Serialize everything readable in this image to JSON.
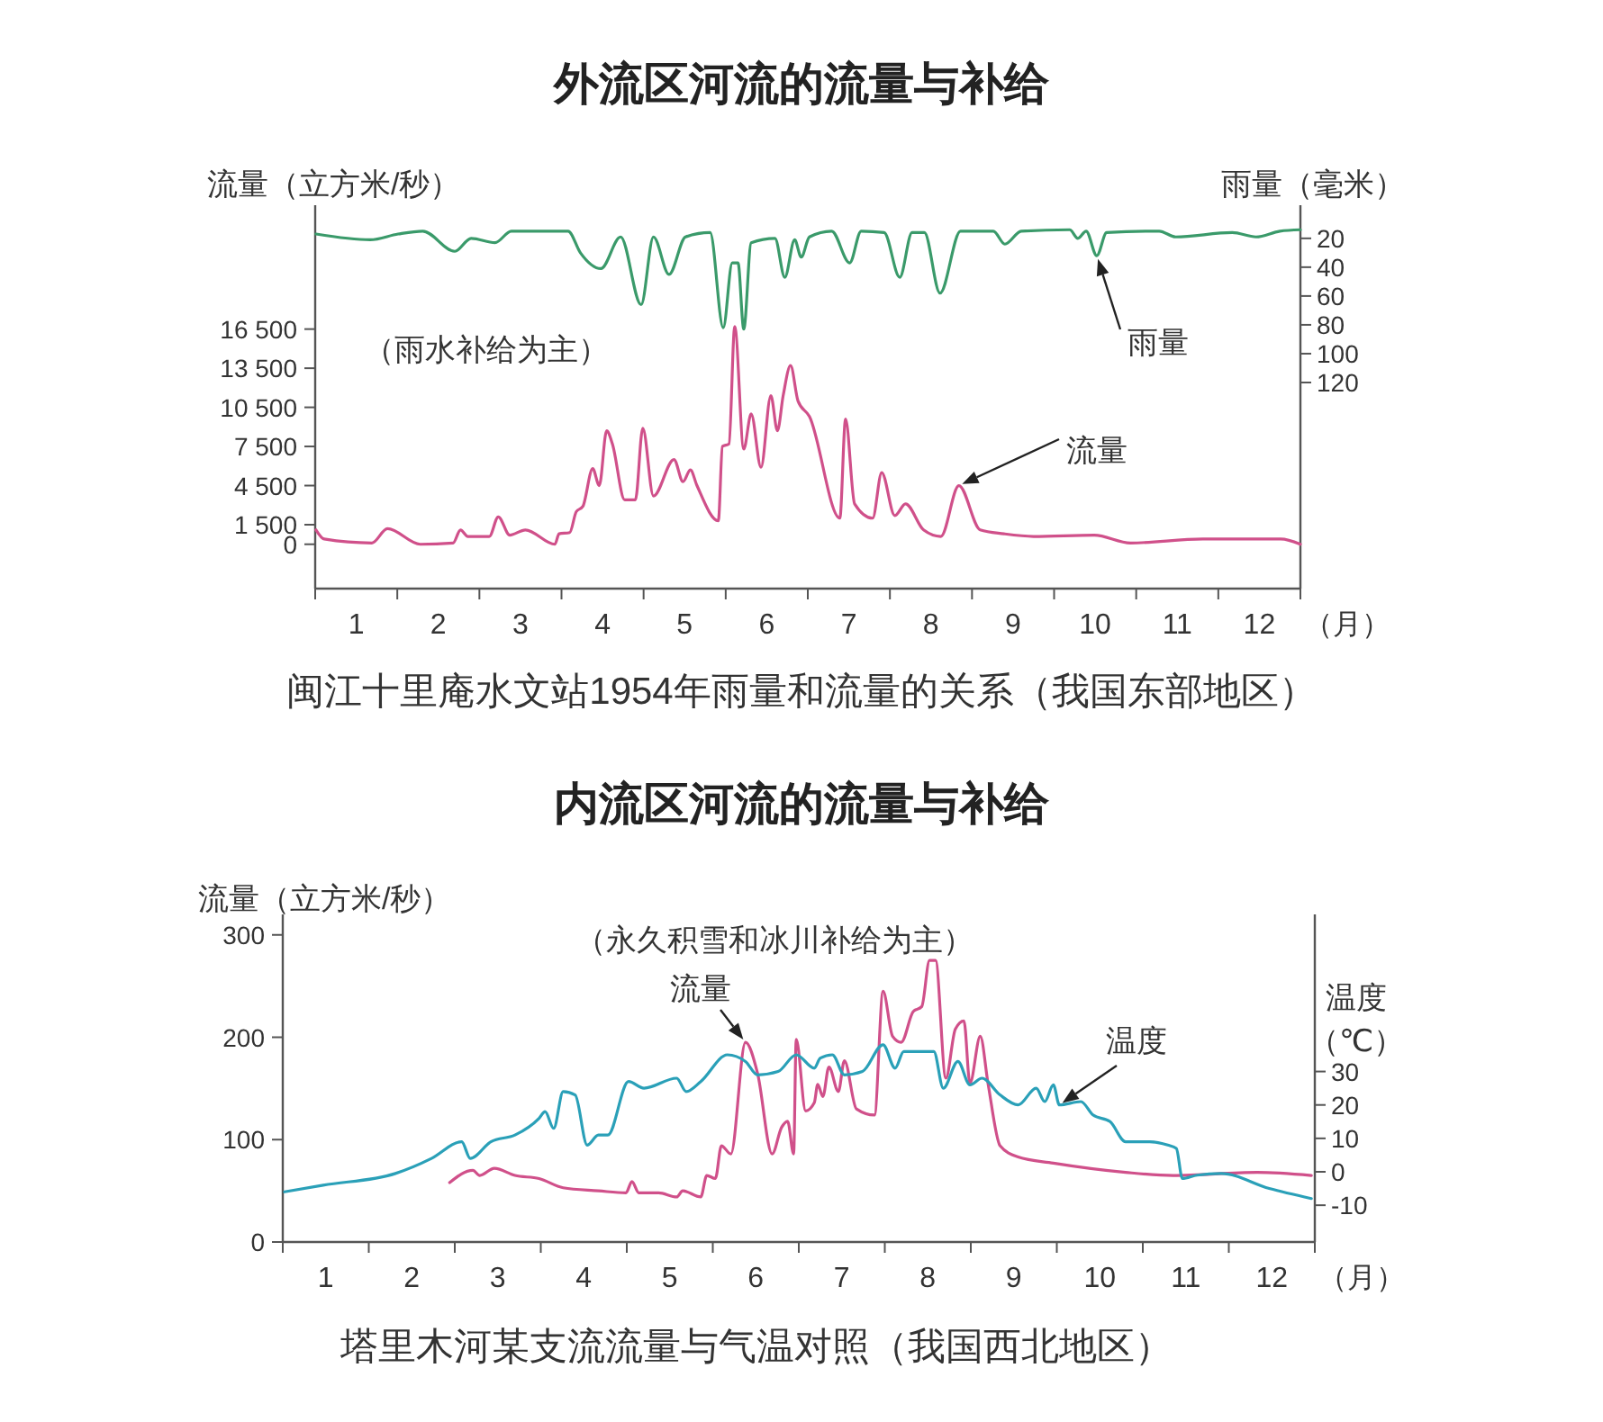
{
  "chart_data": [
    {
      "type": "line",
      "title": "外流区河流的流量与补给",
      "ylabel": "流量（立方米/秒）",
      "y2label": "雨量（毫米）",
      "xlabel": "（月）",
      "annotations": [
        "（雨水补给为主）",
        "闽江十里庵水文站1954年雨量和流量的关系（我国东部地区）"
      ],
      "xlim": [
        0,
        12
      ],
      "xticks": [
        {
          "value": 0,
          "label": null
        },
        {
          "value": 1,
          "label": null
        },
        {
          "value": 2,
          "label": null
        },
        {
          "value": 3,
          "label": null
        },
        {
          "value": 4,
          "label": null
        },
        {
          "value": 5,
          "label": null
        },
        {
          "value": 6,
          "label": null
        },
        {
          "value": 7,
          "label": null
        },
        {
          "value": 8,
          "label": null
        },
        {
          "value": 9,
          "label": null
        },
        {
          "value": 10,
          "label": null
        },
        {
          "value": 11,
          "label": null
        },
        {
          "value": 12,
          "label": null
        },
        {
          "value": 0.5,
          "label": "1"
        },
        {
          "value": 1.5,
          "label": "2"
        },
        {
          "value": 2.5,
          "label": "3"
        },
        {
          "value": 3.5,
          "label": "4"
        },
        {
          "value": 4.5,
          "label": "5"
        },
        {
          "value": 5.5,
          "label": "6"
        },
        {
          "value": 6.5,
          "label": "7"
        },
        {
          "value": 7.5,
          "label": "8"
        },
        {
          "value": 8.5,
          "label": "9"
        },
        {
          "value": 9.5,
          "label": "10"
        },
        {
          "value": 10.5,
          "label": "11"
        },
        {
          "value": 11.5,
          "label": "12"
        }
      ],
      "ylim": [
        -3400,
        26000
      ],
      "yticks": [
        0,
        {
          "value": 1500,
          "label": "1 500"
        },
        {
          "value": 4500,
          "label": "4 500"
        },
        {
          "value": 7500,
          "label": "7 500"
        },
        {
          "value": 10500,
          "label": "10 500"
        },
        {
          "value": 13500,
          "label": "13 500"
        },
        {
          "value": 16500,
          "label": "16 500"
        }
      ],
      "y2lim": [
        263,
        -3
      ],
      "y2ticks": [
        20,
        40,
        60,
        80,
        100,
        120
      ],
      "series": [
        {
          "name": "雨量",
          "color": "#3a9a6a",
          "axis": "y2",
          "x": [
            0.01,
            0.67,
            1.01,
            1.31,
            1.7,
            1.9,
            2.19,
            2.39,
            3.08,
            3.23,
            3.48,
            3.72,
            3.97,
            4.12,
            4.31,
            4.51,
            4.81,
            4.97,
            5.08,
            5.15,
            5.22,
            5.31,
            5.6,
            5.72,
            5.84,
            5.92,
            6.02,
            6.29,
            6.51,
            6.65,
            6.93,
            7.12,
            7.27,
            7.42,
            7.61,
            7.86,
            8.26,
            8.4,
            8.6,
            9.19,
            9.29,
            9.39,
            9.52,
            9.64,
            10.28,
            10.48,
            11.17,
            11.46,
            11.75,
            12
          ],
          "values": [
            17,
            21,
            17,
            15,
            29,
            20,
            23,
            15,
            15,
            30,
            41,
            19,
            66,
            19,
            45,
            19,
            16,
            82,
            37,
            37,
            83,
            23,
            20,
            47,
            21,
            33,
            19,
            15,
            37,
            15,
            16,
            47,
            16,
            16,
            58,
            15,
            15,
            24,
            15,
            14,
            20,
            15,
            32,
            16,
            15,
            19,
            16,
            19,
            15,
            14
          ]
        },
        {
          "name": "流量",
          "color": "#d0508a",
          "x": [
            0.01,
            0.11,
            0.69,
            0.88,
            1.28,
            1.68,
            1.77,
            1.86,
            2.12,
            2.23,
            2.37,
            2.56,
            2.92,
            2.97,
            3.1,
            3.18,
            3.26,
            3.38,
            3.46,
            3.55,
            3.62,
            3.77,
            3.9,
            3.99,
            4.12,
            4.37,
            4.48,
            4.57,
            4.65,
            4.91,
            4.96,
            5.04,
            5.11,
            5.22,
            5.31,
            5.43,
            5.55,
            5.63,
            5.7,
            5.79,
            5.88,
            6.02,
            6.39,
            6.46,
            6.57,
            6.79,
            6.9,
            7.06,
            7.19,
            7.41,
            7.62,
            7.84,
            8.1,
            8.39,
            8.75,
            9.49,
            9.93,
            10.81,
            11.76,
            12
          ],
          "values": [
            1100,
            400,
            100,
            1200,
            0,
            100,
            1100,
            600,
            600,
            2100,
            700,
            1100,
            0,
            800,
            900,
            2500,
            2900,
            5800,
            4500,
            8700,
            7700,
            3400,
            3400,
            8900,
            3700,
            6500,
            4800,
            5700,
            4500,
            1800,
            7500,
            7700,
            16700,
            7300,
            10000,
            5900,
            11400,
            8700,
            11400,
            13700,
            11000,
            9800,
            2000,
            9600,
            3100,
            2000,
            5500,
            2200,
            3100,
            1100,
            600,
            4500,
            1100,
            800,
            600,
            700,
            100,
            400,
            400,
            0
          ]
        }
      ]
    },
    {
      "type": "line",
      "title": "内流区河流的流量与补给",
      "ylabel": "流量（立方米/秒）",
      "y2label": "温度（℃）",
      "xlabel": "（月）",
      "annotations": [
        "（永久积雪和冰川补给为主）",
        "塔里木河某支流流量与气温对照（我国西北地区）"
      ],
      "xlim": [
        0,
        12
      ],
      "xticks": [
        {
          "value": 0,
          "label": null
        },
        {
          "value": 1,
          "label": null
        },
        {
          "value": 2,
          "label": null
        },
        {
          "value": 3,
          "label": null
        },
        {
          "value": 4,
          "label": null
        },
        {
          "value": 5,
          "label": null
        },
        {
          "value": 6,
          "label": null
        },
        {
          "value": 7,
          "label": null
        },
        {
          "value": 8,
          "label": null
        },
        {
          "value": 9,
          "label": null
        },
        {
          "value": 10,
          "label": null
        },
        {
          "value": 11,
          "label": null
        },
        {
          "value": 12,
          "label": null
        },
        {
          "value": 0.5,
          "label": "1"
        },
        {
          "value": 1.5,
          "label": "2"
        },
        {
          "value": 2.5,
          "label": "3"
        },
        {
          "value": 3.5,
          "label": "4"
        },
        {
          "value": 4.5,
          "label": "5"
        },
        {
          "value": 5.5,
          "label": "6"
        },
        {
          "value": 6.5,
          "label": "7"
        },
        {
          "value": 7.5,
          "label": "8"
        },
        {
          "value": 8.5,
          "label": "9"
        },
        {
          "value": 9.5,
          "label": "10"
        },
        {
          "value": 10.5,
          "label": "11"
        },
        {
          "value": 11.5,
          "label": "12"
        }
      ],
      "ylim": [
        0,
        320
      ],
      "yticks": [
        0,
        100,
        200,
        300
      ],
      "y2lim": [
        -21,
        77
      ],
      "y2ticks": [
        -10,
        0,
        10,
        20,
        30
      ],
      "series": [
        {
          "name": "流量",
          "color": "#d0508a",
          "x": [
            1.94,
            2.21,
            2.29,
            2.46,
            2.7,
            2.98,
            3.26,
            3.67,
            3.99,
            4.06,
            4.14,
            4.37,
            4.58,
            4.65,
            4.86,
            4.93,
            5.03,
            5.1,
            5.21,
            5.38,
            5.52,
            5.69,
            5.8,
            5.87,
            5.94,
            5.97,
            6.08,
            6.18,
            6.22,
            6.28,
            6.35,
            6.46,
            6.53,
            6.67,
            6.88,
            6.98,
            7.09,
            7.19,
            7.33,
            7.43,
            7.52,
            7.59,
            7.71,
            7.82,
            7.92,
            7.99,
            8.11,
            8.2,
            8.34,
            8.55,
            8.96,
            9.8,
            10.35,
            11.33,
            11.96
          ],
          "values": [
            58,
            70,
            65,
            72,
            65,
            62,
            53,
            50,
            48,
            59,
            48,
            48,
            44,
            50,
            44,
            65,
            62,
            94,
            86,
            195,
            165,
            86,
            112,
            118,
            86,
            198,
            128,
            136,
            154,
            142,
            171,
            147,
            177,
            130,
            124,
            245,
            201,
            195,
            225,
            230,
            275,
            275,
            160,
            208,
            216,
            155,
            201,
            155,
            94,
            83,
            77,
            68,
            65,
            68,
            65
          ]
        },
        {
          "name": "温度",
          "color": "#2aa0b8",
          "axis": "y2",
          "x": [
            0.02,
            0.47,
            1.31,
            1.73,
            2.08,
            2.18,
            2.42,
            2.7,
            2.98,
            3.05,
            3.15,
            3.26,
            3.4,
            3.54,
            3.67,
            3.78,
            4.02,
            4.2,
            4.58,
            4.69,
            4.86,
            5.17,
            5.38,
            5.52,
            5.76,
            5.97,
            6.18,
            6.25,
            6.39,
            6.53,
            6.74,
            6.98,
            7.12,
            7.22,
            7.57,
            7.68,
            7.85,
            7.99,
            8.13,
            8.34,
            8.55,
            8.76,
            8.86,
            8.96,
            9.03,
            9.28,
            9.42,
            9.62,
            9.8,
            10.08,
            10.29,
            10.39,
            10.46,
            10.63,
            10.91,
            11.47,
            11.96
          ],
          "values": [
            -6,
            -4,
            -0.5,
            4,
            9,
            4,
            9,
            11,
            16,
            18,
            13,
            24,
            23,
            8,
            11,
            11,
            27,
            25,
            28,
            24,
            27,
            35,
            33,
            29,
            30,
            35,
            31,
            34,
            35,
            29,
            30,
            38,
            31,
            36,
            36,
            25,
            33,
            26,
            28,
            23,
            20,
            25,
            21,
            26,
            20,
            21,
            17,
            15,
            9,
            9,
            8,
            7,
            -2,
            -1,
            -0.5,
            -5,
            -8
          ]
        }
      ]
    }
  ]
}
